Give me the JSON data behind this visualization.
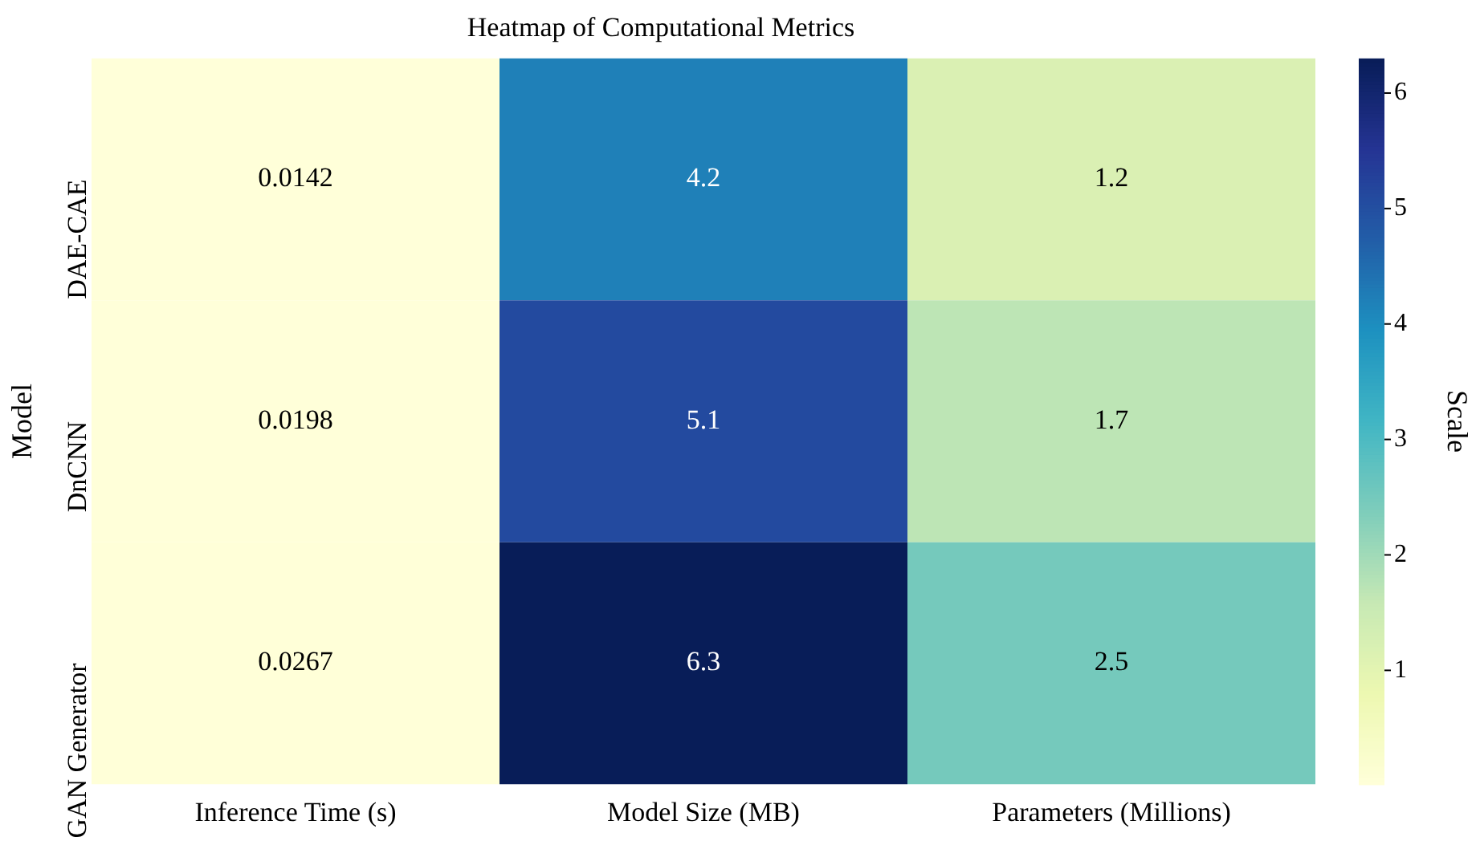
{
  "chart_data": {
    "type": "heatmap",
    "title": "Heatmap of Computational Metrics",
    "ylabel": "Model",
    "clabel": "Scale",
    "categories": [
      "Inference Time (s)",
      "Model Size (MB)",
      "Parameters (Millions)"
    ],
    "y_categories": [
      "DAE-CAE",
      "DnCNN",
      "GAN Generator"
    ],
    "cells": [
      [
        0.0142,
        4.2,
        1.2
      ],
      [
        0.0198,
        5.1,
        1.7
      ],
      [
        0.0267,
        6.3,
        2.5
      ]
    ],
    "data_labels": true,
    "clim": [
      0.0142,
      6.3
    ],
    "cticks": [
      1,
      2,
      3,
      4,
      5,
      6
    ]
  }
}
